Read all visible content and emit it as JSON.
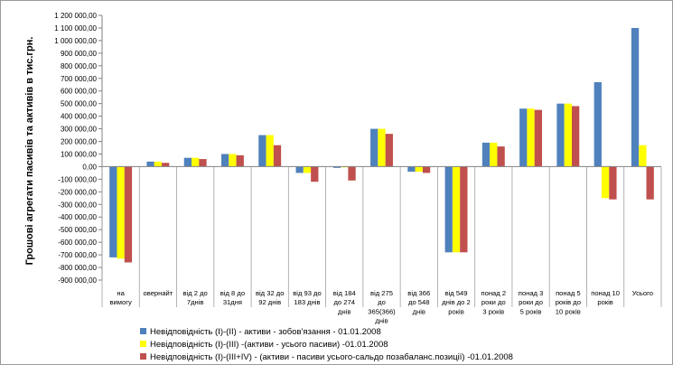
{
  "chart_data": {
    "type": "bar",
    "ylabel": "Грошові агрегати пасивів та активів в тис.грн.",
    "ylim": [
      -900000,
      1200000
    ],
    "ytick_step": 100000,
    "ytick_labels": [
      "-900 000,00",
      "-800 000,00",
      "-700 000,00",
      "-600 000,00",
      "-500 000,00",
      "-400 000,00",
      "-300 000,00",
      "-200 000,00",
      "-100 000,00",
      "0,00",
      "100 000,00",
      "200 000,00",
      "300 000,00",
      "400 000,00",
      "500 000,00",
      "600 000,00",
      "700 000,00",
      "800 000,00",
      "900 000,00",
      "1 000 000,00",
      "1 100 000,00",
      "1 200 000,00"
    ],
    "grid": false,
    "legend_position": "bottom",
    "categories": [
      [
        "на",
        "вимогу"
      ],
      [
        "овернайт"
      ],
      [
        "від 2 до",
        "7днів"
      ],
      [
        "від 8 до",
        "31дня"
      ],
      [
        "від 32 до",
        "92 днів"
      ],
      [
        "від 93 до",
        "183 днів"
      ],
      [
        "від 184",
        "до 274",
        "днів"
      ],
      [
        "від 275",
        "до",
        "365(366)",
        "днів"
      ],
      [
        "від 366",
        "до 548",
        "днів"
      ],
      [
        "від 549",
        "днів до 2",
        "років"
      ],
      [
        "понад 2",
        "роки до",
        "3 років"
      ],
      [
        "понад 3",
        "роки до",
        "5 років"
      ],
      [
        "понад 5",
        "років до",
        "10 років"
      ],
      [
        "понад 10",
        "років"
      ],
      [
        "Усього"
      ]
    ],
    "series": [
      {
        "name": "Невідповідність (I)-(II) - активи - зобов'язання - 01.01.2008",
        "color": "#4f81bd",
        "values": [
          -720000,
          40000,
          70000,
          100000,
          250000,
          -50000,
          -10000,
          300000,
          -40000,
          -680000,
          190000,
          460000,
          500000,
          670000,
          1100000
        ]
      },
      {
        "name": "Невідповідність (I)-(III) -(активи - усього пасиви) -01.01.2008",
        "color": "#ffff00",
        "values": [
          -730000,
          40000,
          70000,
          100000,
          250000,
          -50000,
          -5000,
          300000,
          -40000,
          -680000,
          190000,
          460000,
          500000,
          -250000,
          170000
        ]
      },
      {
        "name": "Невідповідність (I)-(III+IV) - (активи - пасиви усього-сальдо позабаланс.позиції) -01.01.2008",
        "color": "#c0504d",
        "values": [
          -760000,
          30000,
          60000,
          90000,
          170000,
          -120000,
          -110000,
          260000,
          -50000,
          -680000,
          160000,
          450000,
          480000,
          -260000,
          -260000
        ]
      }
    ]
  }
}
